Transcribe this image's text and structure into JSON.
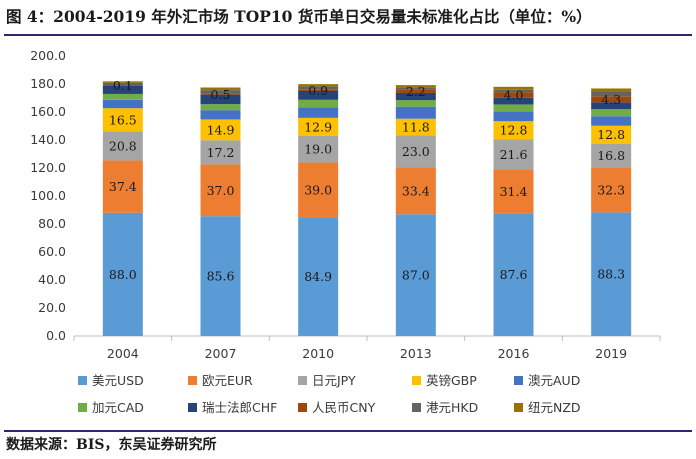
{
  "figure": {
    "title": "图 4：2004-2019 年外汇市场 TOP10 货币单日交易量未标准化占比（单位：%）",
    "source": "数据来源：BIS，东吴证券研究所"
  },
  "chart_data": {
    "type": "stacked-bar",
    "title": "图 4：2004-2019 年外汇市场 TOP10 货币单日交易量未标准化占比（单位：%）",
    "xlabel": "",
    "ylabel": "",
    "ylim": [
      0,
      200
    ],
    "yticks": [
      "0.0",
      "20.0",
      "40.0",
      "60.0",
      "80.0",
      "100.0",
      "120.0",
      "140.0",
      "160.0",
      "180.0",
      "200.0"
    ],
    "grid": false,
    "legend_position": "bottom",
    "categories": [
      "2004",
      "2007",
      "2010",
      "2013",
      "2016",
      "2019"
    ],
    "series": [
      {
        "name": "美元USD",
        "color": "#5b9bd5",
        "values": [
          88.0,
          85.6,
          84.9,
          87.0,
          87.6,
          88.3
        ],
        "labels": [
          "88.0",
          "85.6",
          "84.9",
          "87.0",
          "87.6",
          "88.3"
        ]
      },
      {
        "name": "欧元EUR",
        "color": "#ed7d31",
        "values": [
          37.4,
          37.0,
          39.0,
          33.4,
          31.4,
          32.3
        ],
        "labels": [
          "37.4",
          "37.0",
          "39.0",
          "33.4",
          "31.4",
          "32.3"
        ]
      },
      {
        "name": "日元JPY",
        "color": "#a5a5a5",
        "values": [
          20.8,
          17.2,
          19.0,
          23.0,
          21.6,
          16.8
        ],
        "labels": [
          "20.8",
          "17.2",
          "19.0",
          "23.0",
          "21.6",
          "16.8"
        ]
      },
      {
        "name": "英镑GBP",
        "color": "#ffc000",
        "values": [
          16.5,
          14.9,
          12.9,
          11.8,
          12.8,
          12.8
        ],
        "labels": [
          "16.5",
          "14.9",
          "12.9",
          "11.8",
          "12.8",
          "12.8"
        ]
      },
      {
        "name": "澳元AUD",
        "color": "#4472c4",
        "values": [
          6.0,
          6.6,
          7.6,
          8.6,
          6.9,
          6.8
        ],
        "labels": []
      },
      {
        "name": "加元CAD",
        "color": "#70ad47",
        "values": [
          4.2,
          4.3,
          5.3,
          4.6,
          5.1,
          5.0
        ],
        "labels": []
      },
      {
        "name": "瑞士法郎CHF",
        "color": "#264478",
        "values": [
          6.0,
          6.8,
          6.3,
          5.2,
          4.8,
          4.9
        ],
        "labels": []
      },
      {
        "name": "人民币CNY",
        "color": "#9e480e",
        "values": [
          0.1,
          0.5,
          0.9,
          2.2,
          4.0,
          4.3
        ],
        "labels": [
          "0.1",
          "0.5",
          "0.9",
          "2.2",
          "4.0",
          "4.3"
        ]
      },
      {
        "name": "港元HKD",
        "color": "#636363",
        "values": [
          1.8,
          2.7,
          2.4,
          1.4,
          1.7,
          3.5
        ],
        "labels": []
      },
      {
        "name": "纽元NZD",
        "color": "#997300",
        "values": [
          1.1,
          1.9,
          1.6,
          2.0,
          2.1,
          2.1
        ],
        "labels": []
      }
    ]
  }
}
